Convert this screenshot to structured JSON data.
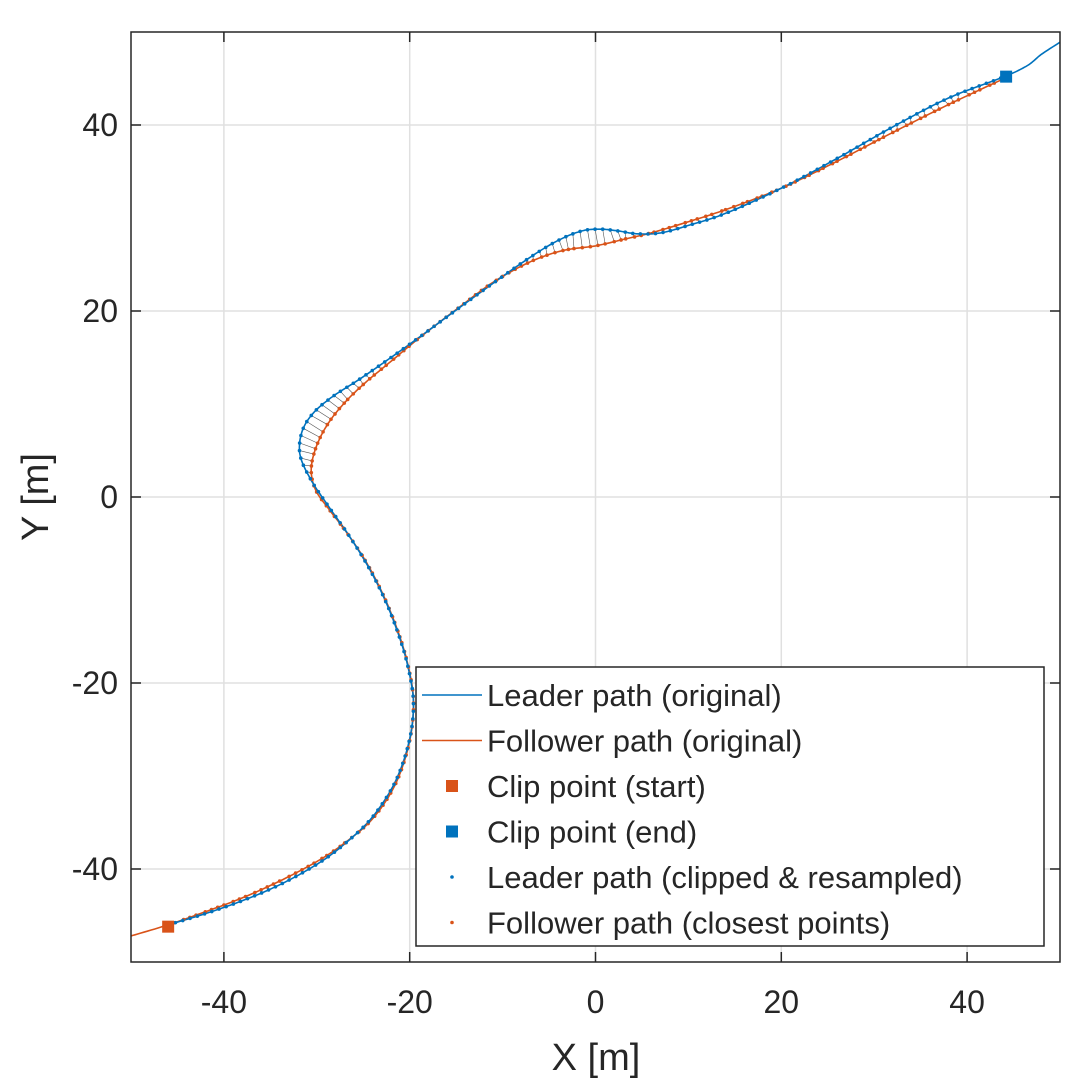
{
  "chart_data": {
    "type": "line",
    "xlabel": "X [m]",
    "ylabel": "Y [m]",
    "xlim": [
      -50,
      50
    ],
    "ylim": [
      -50,
      50
    ],
    "xticks": [
      -40,
      -20,
      0,
      20,
      40
    ],
    "yticks": [
      -40,
      -20,
      0,
      20,
      40
    ],
    "grid": true,
    "legend_position": "bottom-right",
    "series": [
      {
        "name": "Leader path (original)",
        "color": "#0072BD",
        "style": "line",
        "x": [
          -46,
          -42,
          -38,
          -34,
          -30,
          -27,
          -24,
          -21.5,
          -20,
          -19.6,
          -20.2,
          -21.2,
          -22.6,
          -24.4,
          -26.5,
          -28.6,
          -30.6,
          -31.8,
          -31.6,
          -30.4,
          -28.3,
          -25.5,
          -22.3,
          -18.8,
          -15,
          -11,
          -7,
          -4,
          -1.5,
          0.5,
          2.5,
          4.5,
          7,
          10,
          14,
          20,
          26,
          32,
          38,
          44,
          46.5,
          48,
          50
        ],
        "y": [
          -46,
          -44.8,
          -43.4,
          -41.7,
          -39.5,
          -37.3,
          -34.4,
          -30.5,
          -26,
          -22,
          -18.2,
          -14.8,
          -11.2,
          -7.6,
          -4.2,
          -1.2,
          1.8,
          4.5,
          7,
          9,
          10.8,
          12.6,
          14.8,
          17.3,
          20.1,
          23,
          25.8,
          27.6,
          28.6,
          28.8,
          28.6,
          28.3,
          28.4,
          29.2,
          30.5,
          33.2,
          36.4,
          39.8,
          42.9,
          45.2,
          46.4,
          47.6,
          48.9
        ]
      },
      {
        "name": "Follower path (original)",
        "color": "#D95319",
        "style": "line",
        "x": [
          -50,
          -46,
          -42,
          -38,
          -34,
          -30,
          -27,
          -24,
          -21.5,
          -20,
          -19.6,
          -20.3,
          -21.5,
          -23,
          -24.8,
          -26.8,
          -28.7,
          -30.1,
          -30.6,
          -30.2,
          -29.1,
          -27.4,
          -25,
          -22,
          -18.6,
          -14.8,
          -11,
          -7,
          -3.5,
          0,
          3,
          6,
          10,
          14,
          20,
          26,
          32,
          38,
          44
        ],
        "y": [
          -47.2,
          -46,
          -44.6,
          -43.1,
          -41.3,
          -39.2,
          -37.2,
          -34.6,
          -30.8,
          -26.2,
          -21.8,
          -17.6,
          -13.8,
          -10.2,
          -6.8,
          -3.8,
          -1.3,
          0.7,
          2.8,
          5,
          7.4,
          9.7,
          12.1,
          14.6,
          17.4,
          20.3,
          23.1,
          25.3,
          26.5,
          27,
          27.7,
          28.4,
          29.6,
          30.9,
          33.2,
          36.1,
          39.2,
          42.2,
          45
        ]
      },
      {
        "name": "Clip point (start)",
        "color": "#D95319",
        "style": "square",
        "x": [
          -46
        ],
        "y": [
          -46.2
        ]
      },
      {
        "name": "Clip point (end)",
        "color": "#0072BD",
        "style": "square",
        "x": [
          44.2
        ],
        "y": [
          45.2
        ]
      },
      {
        "name": "Leader path (clipped & resampled)",
        "color": "#0072BD",
        "style": "dots"
      },
      {
        "name": "Follower path (closest points)",
        "color": "#D95319",
        "style": "dots"
      }
    ]
  }
}
